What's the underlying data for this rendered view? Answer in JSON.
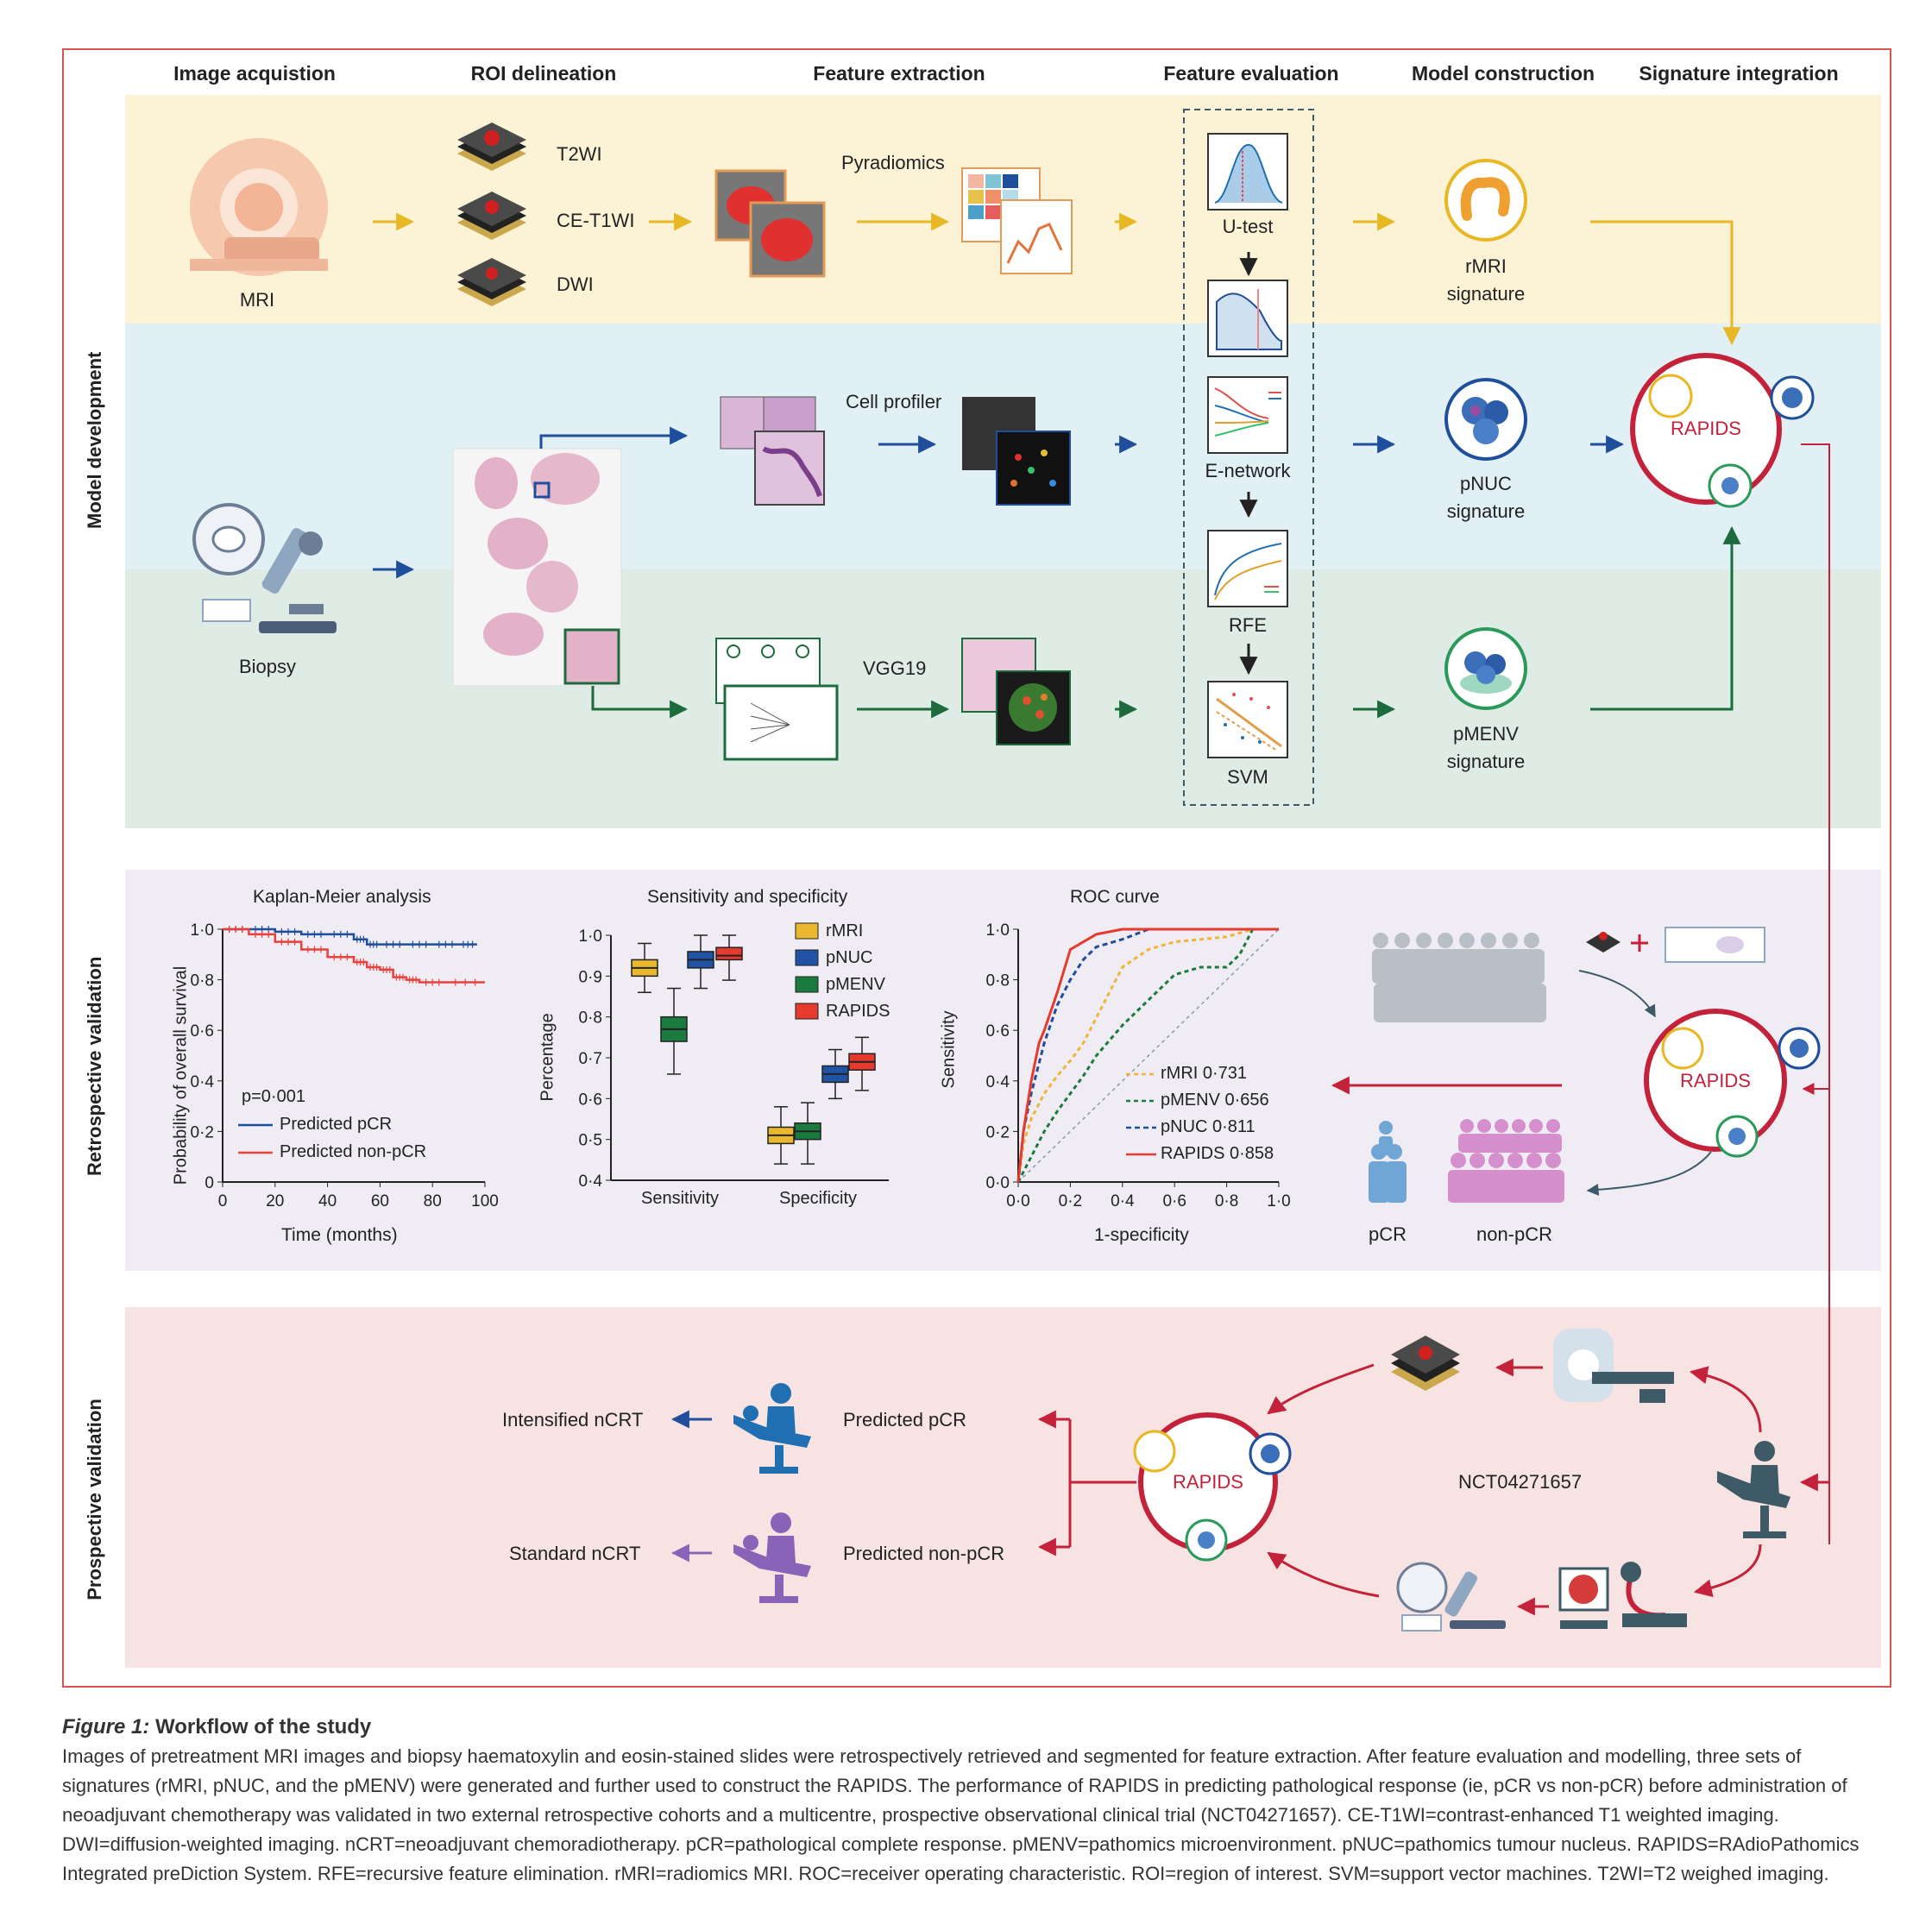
{
  "headers": [
    "Image acquistion",
    "ROI delineation",
    "Feature extraction",
    "Feature evaluation",
    "Model construction",
    "Signature integration"
  ],
  "sections": {
    "dev": "Model development",
    "retro": "Retrospective validation",
    "pro": "Prospective validation"
  },
  "dev": {
    "mri": "MRI",
    "biopsy": "Biopsy",
    "roi": [
      "T2WI",
      "CE-T1WI",
      "DWI"
    ],
    "pyradiomics": "Pyradiomics",
    "cellprofiler": "Cell profiler",
    "vgg19": "VGG19",
    "eval": [
      "U-test",
      "E-network",
      "RFE",
      "SVM"
    ],
    "sig_rmri": [
      "rMRI",
      "signature"
    ],
    "sig_pnuc": [
      "pNUC",
      "signature"
    ],
    "sig_pmenv": [
      "pMENV",
      "signature"
    ],
    "rapids": "RAPIDS"
  },
  "km": {
    "title": "Kaplan-Meier analysis",
    "ylabel": "Probability of overall survival",
    "xlabel": "Time (months)",
    "pval": "p=0·001",
    "xticks": [
      "0",
      "20",
      "40",
      "60",
      "80",
      "100"
    ],
    "yticks": [
      "0",
      "0·2",
      "0·4",
      "0·6",
      "0·8",
      "1·0"
    ],
    "legend": [
      "Predicted pCR",
      "Predicted non-pCR"
    ]
  },
  "box": {
    "title": "Sensitivity and specificity",
    "ylabel": "Percentage",
    "yticks": [
      "0·4",
      "0·5",
      "0·6",
      "0·7",
      "0·8",
      "0·9",
      "1·0"
    ],
    "groups": [
      "Sensitivity",
      "Specificity"
    ],
    "legend": [
      "rMRI",
      "pNUC",
      "pMENV",
      "RAPIDS"
    ]
  },
  "roc": {
    "title": "ROC curve",
    "ylabel": "Sensitivity",
    "xlabel": "1-specificity",
    "ticks": [
      "0·0",
      "0·2",
      "0·4",
      "0·6",
      "0·8",
      "1·0"
    ],
    "legend": [
      "rMRI 0·731",
      "pMENV 0·656",
      "pNUC 0·811",
      "RAPIDS 0·858"
    ]
  },
  "retro": {
    "pcr": "pCR",
    "nonpcr": "non-pCR",
    "rapids": "RAPIDS"
  },
  "pro": {
    "intensified": "Intensified nCRT",
    "standard": "Standard nCRT",
    "pred_pcr": "Predicted pCR",
    "pred_nonpcr": "Predicted non-pCR",
    "trial": "NCT04271657",
    "rapids": "RAPIDS"
  },
  "colors": {
    "yellow": "#e8b824",
    "blue": "#1f4e9c",
    "green": "#1d6b3c",
    "red": "#c4213a",
    "purple": "#8a63b8"
  },
  "chart_data": [
    {
      "type": "line",
      "title": "Kaplan-Meier analysis",
      "xlabel": "Time (months)",
      "ylabel": "Probability of overall survival",
      "xlim": [
        0,
        100
      ],
      "ylim": [
        0,
        1.0
      ],
      "series": [
        {
          "name": "Predicted pCR",
          "x": [
            0,
            10,
            20,
            30,
            40,
            50,
            55,
            60,
            70,
            80,
            90,
            97
          ],
          "y": [
            1.0,
            1.0,
            0.99,
            0.98,
            0.98,
            0.96,
            0.94,
            0.94,
            0.94,
            0.94,
            0.94,
            0.94
          ]
        },
        {
          "name": "Predicted non-pCR",
          "x": [
            0,
            10,
            20,
            30,
            40,
            50,
            55,
            60,
            65,
            70,
            75,
            85,
            100
          ],
          "y": [
            1.0,
            0.98,
            0.95,
            0.92,
            0.89,
            0.87,
            0.85,
            0.84,
            0.81,
            0.8,
            0.79,
            0.79,
            0.79
          ]
        }
      ],
      "annotations": [
        "p=0·001"
      ]
    },
    {
      "type": "box",
      "title": "Sensitivity and specificity",
      "ylabel": "Percentage",
      "ylim": [
        0.4,
        1.0
      ],
      "categories": [
        "Sensitivity",
        "Specificity"
      ],
      "series": [
        {
          "name": "rMRI",
          "median": [
            0.92,
            0.51
          ],
          "q1": [
            0.9,
            0.49
          ],
          "q3": [
            0.94,
            0.53
          ],
          "min": [
            0.86,
            0.44
          ],
          "max": [
            0.98,
            0.58
          ]
        },
        {
          "name": "pNUC",
          "median": [
            0.94,
            0.66
          ],
          "q1": [
            0.92,
            0.64
          ],
          "q3": [
            0.96,
            0.68
          ],
          "min": [
            0.87,
            0.6
          ],
          "max": [
            1.0,
            0.72
          ]
        },
        {
          "name": "pMENV",
          "median": [
            0.77,
            0.52
          ],
          "q1": [
            0.74,
            0.5
          ],
          "q3": [
            0.8,
            0.54
          ],
          "min": [
            0.66,
            0.44
          ],
          "max": [
            0.87,
            0.59
          ]
        },
        {
          "name": "RAPIDS",
          "median": [
            0.95,
            0.69
          ],
          "q1": [
            0.94,
            0.67
          ],
          "q3": [
            0.97,
            0.71
          ],
          "min": [
            0.89,
            0.62
          ],
          "max": [
            1.0,
            0.75
          ]
        }
      ]
    },
    {
      "type": "line",
      "title": "ROC curve",
      "xlabel": "1-specificity",
      "ylabel": "Sensitivity",
      "xlim": [
        0,
        1
      ],
      "ylim": [
        0,
        1
      ],
      "series": [
        {
          "name": "rMRI 0·731",
          "x": [
            0,
            0.02,
            0.05,
            0.1,
            0.15,
            0.2,
            0.25,
            0.3,
            0.35,
            0.4,
            0.5,
            0.6,
            0.7,
            0.8,
            0.9,
            1
          ],
          "y": [
            0,
            0.15,
            0.25,
            0.35,
            0.42,
            0.48,
            0.55,
            0.65,
            0.75,
            0.85,
            0.92,
            0.95,
            0.96,
            0.97,
            1,
            1
          ]
        },
        {
          "name": "pMENV 0·656",
          "x": [
            0,
            0.05,
            0.1,
            0.15,
            0.2,
            0.25,
            0.3,
            0.4,
            0.5,
            0.6,
            0.7,
            0.8,
            0.85,
            0.9,
            1
          ],
          "y": [
            0,
            0.1,
            0.2,
            0.28,
            0.35,
            0.42,
            0.5,
            0.62,
            0.72,
            0.82,
            0.85,
            0.85,
            0.9,
            1,
            1
          ]
        },
        {
          "name": "pNUC 0·811",
          "x": [
            0,
            0.02,
            0.05,
            0.1,
            0.15,
            0.2,
            0.25,
            0.3,
            0.4,
            0.5,
            0.6,
            0.7,
            1
          ],
          "y": [
            0,
            0.2,
            0.35,
            0.55,
            0.7,
            0.8,
            0.88,
            0.93,
            0.96,
            1,
            1,
            1,
            1
          ]
        },
        {
          "name": "RAPIDS 0·858",
          "x": [
            0,
            0.02,
            0.05,
            0.08,
            0.1,
            0.15,
            0.2,
            0.3,
            0.4,
            0.5,
            0.6,
            1
          ],
          "y": [
            0,
            0.2,
            0.4,
            0.55,
            0.6,
            0.75,
            0.92,
            0.98,
            1,
            1,
            1,
            1
          ]
        }
      ]
    }
  ],
  "caption": {
    "fig": "Figure 1:",
    "title": " Workflow of the study",
    "body": "Images of pretreatment MRI images and biopsy haematoxylin and eosin-stained slides were retrospectively retrieved and segmented for feature extraction. After feature evaluation and modelling, three sets of signatures (rMRI, pNUC, and the pMENV) were generated and further used to construct the RAPIDS. The performance of RAPIDS in predicting pathological response (ie, pCR vs non-pCR) before administration of neoadjuvant chemotherapy was validated in two external retrospective cohorts and a multicentre, prospective observational clinical trial (NCT04271657). CE-T1WI=contrast-enhanced T1 weighted imaging. DWI=diffusion-weighted imaging. nCRT=neoadjuvant chemoradiotherapy. pCR=pathological complete response. pMENV=pathomics microenvironment. pNUC=pathomics tumour nucleus. RAPIDS=RAdioPathomics Integrated preDiction System. RFE=recursive feature elimination. rMRI=radiomics MRI. ROC=receiver operating characteristic. ROI=region of interest. SVM=support vector machines. T2WI=T2 weighed imaging."
  }
}
